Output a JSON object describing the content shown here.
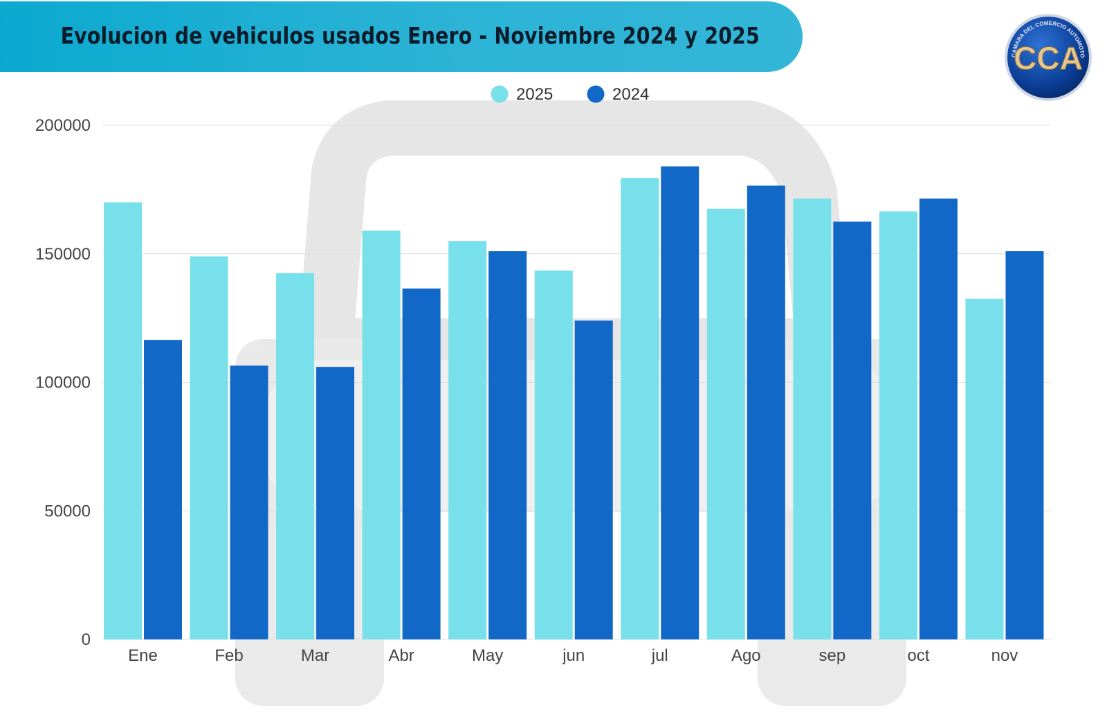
{
  "header": {
    "title": "Evolucion de vehiculos usados Enero - Noviembre 2024 y 2025"
  },
  "logo": {
    "letters": "CCA",
    "ring_text": "CAMARA DEL COMERCIO AUTOMOTOR"
  },
  "colors": {
    "banner": "#1fb0d4",
    "series_2025": "#77e0ea",
    "series_2024": "#1268c7",
    "grid": "#dddddd",
    "axis_text": "#444444"
  },
  "chart_data": {
    "type": "bar",
    "title": "Evolucion de vehiculos usados Enero - Noviembre 2024 y 2025",
    "xlabel": "",
    "ylabel": "",
    "categories": [
      "Ene",
      "Feb",
      "Mar",
      "Abr",
      "May",
      "jun",
      "jul",
      "Ago",
      "sep",
      "oct",
      "nov"
    ],
    "series": [
      {
        "name": "2025",
        "color": "#77e0ea",
        "values": [
          170000,
          149000,
          142500,
          159000,
          155000,
          143500,
          179500,
          167500,
          171500,
          166500,
          132500
        ]
      },
      {
        "name": "2024",
        "color": "#1268c7",
        "values": [
          116500,
          106500,
          106000,
          136500,
          151000,
          124000,
          184000,
          176500,
          162500,
          171500,
          151000
        ]
      }
    ],
    "yticks": [
      "0",
      "50000",
      "100000",
      "150000",
      "200000"
    ],
    "ylim": [
      0,
      200000
    ],
    "grid": true,
    "legend_position": "top-center"
  }
}
